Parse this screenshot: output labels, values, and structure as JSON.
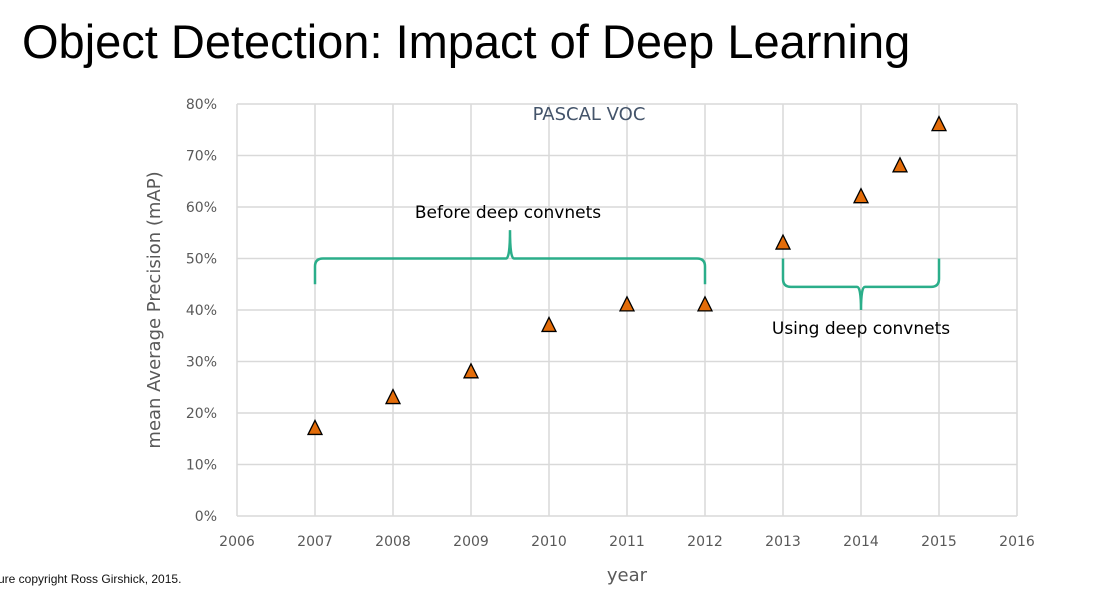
{
  "slide": {
    "title": "Object Detection: Impact of Deep Learning",
    "credit": "ure copyright Ross Girshick, 2015."
  },
  "chart_data": {
    "type": "scatter",
    "title": "PASCAL VOC",
    "xlabel": "year",
    "ylabel": "mean Average Precision (mAP)",
    "xlim": [
      2006,
      2016
    ],
    "ylim": [
      0,
      80
    ],
    "xticks": [
      "2006",
      "2007",
      "2008",
      "2009",
      "2010",
      "2011",
      "2012",
      "2013",
      "2014",
      "2015",
      "2016"
    ],
    "yticks": [
      "0%",
      "10%",
      "20%",
      "30%",
      "40%",
      "50%",
      "60%",
      "70%",
      "80%"
    ],
    "grid": true,
    "marker": "triangle",
    "marker_color": "#E36C09",
    "points": [
      {
        "x": 2007,
        "y": 17
      },
      {
        "x": 2008,
        "y": 23
      },
      {
        "x": 2009,
        "y": 28
      },
      {
        "x": 2010,
        "y": 37
      },
      {
        "x": 2011,
        "y": 41
      },
      {
        "x": 2012,
        "y": 41
      },
      {
        "x": 2013,
        "y": 53
      },
      {
        "x": 2014,
        "y": 62
      },
      {
        "x": 2014.5,
        "y": 68
      },
      {
        "x": 2015,
        "y": 76
      }
    ],
    "annotations": [
      {
        "text": "Before deep convnets",
        "from": 2007,
        "to": 2012,
        "bracket_color": "#2BAE8A"
      },
      {
        "text": "Using deep convnets",
        "from": 2013,
        "to": 2015,
        "bracket_color": "#2BAE8A"
      }
    ]
  }
}
